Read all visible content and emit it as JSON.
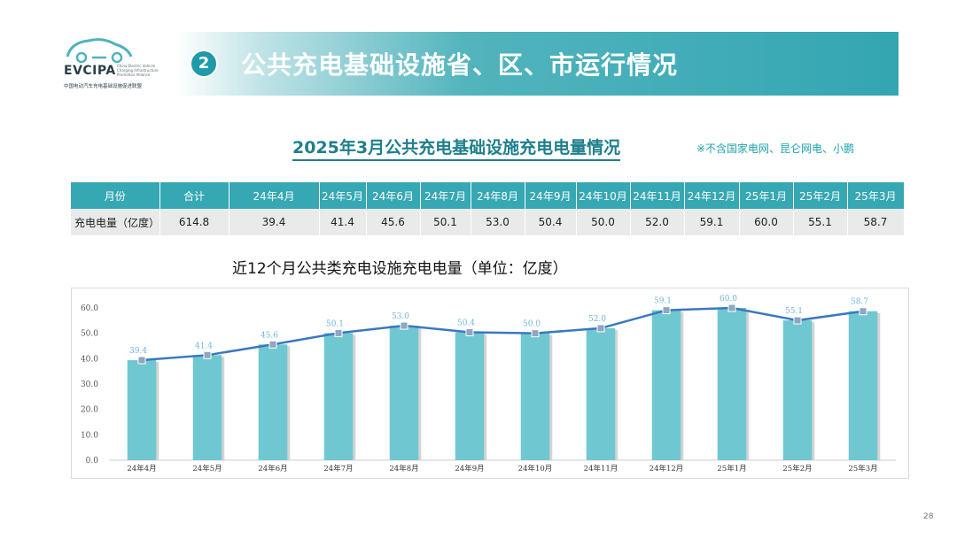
{
  "logo": {
    "brand": "EVCIPA",
    "brand_en": "China Electric Vehicle Charging Infrastructure Promotion Alliance",
    "brand_cn": "中国电动汽车充电基础设施促进联盟"
  },
  "header": {
    "section_number": "2",
    "title": "公共充电基础设施省、区、市运行情况"
  },
  "subtitle": "2025年3月公共充电基础设施充电电量情况",
  "note": "※不含国家电网、昆仑网电、小鹏",
  "table": {
    "headers": [
      "月份",
      "合计",
      "24年4月",
      "24年5月",
      "24年6月",
      "24年7月",
      "24年8月",
      "24年9月",
      "24年10月",
      "24年11月",
      "24年12月",
      "25年1月",
      "25年2月",
      "25年3月"
    ],
    "row_label": "充电电量（亿度）",
    "values": [
      "614.8",
      "39.4",
      "41.4",
      "45.6",
      "50.1",
      "53.0",
      "50.4",
      "50.0",
      "52.0",
      "59.1",
      "60.0",
      "55.1",
      "58.7"
    ]
  },
  "chart_data": {
    "type": "bar",
    "title": "近12个月公共类充电设施充电电量（单位：亿度）",
    "categories": [
      "24年4月",
      "24年5月",
      "24年6月",
      "24年7月",
      "24年8月",
      "24年9月",
      "24年10月",
      "24年11月",
      "24年12月",
      "25年1月",
      "25年2月",
      "25年3月"
    ],
    "series": [
      {
        "type": "bar",
        "values": [
          39.4,
          41.4,
          45.6,
          50.1,
          53.0,
          50.4,
          50.0,
          52.0,
          59.1,
          60.0,
          55.1,
          58.7
        ],
        "color": "#6fc8d1"
      },
      {
        "type": "line",
        "values": [
          39.4,
          41.4,
          45.6,
          50.1,
          53.0,
          50.4,
          50.0,
          52.0,
          59.1,
          60.0,
          55.1,
          58.7
        ],
        "color": "#3b78bf"
      }
    ],
    "data_labels": [
      "39.4",
      "41.4",
      "45.6",
      "50.1",
      "53.0",
      "50.4",
      "50.0",
      "52.0",
      "59.1",
      "60.0",
      "55.1",
      "58.7"
    ],
    "yticks": [
      "0.0",
      "10.0",
      "20.0",
      "30.0",
      "40.0",
      "50.0",
      "60.0"
    ],
    "ylim": [
      0,
      60
    ],
    "grid": false,
    "legend": "none",
    "colors": {
      "bar": "#6fc8d1",
      "line": "#3b78bf",
      "marker": "#8fa6bf",
      "label": "#6fb6d8"
    }
  },
  "page_number": "28"
}
